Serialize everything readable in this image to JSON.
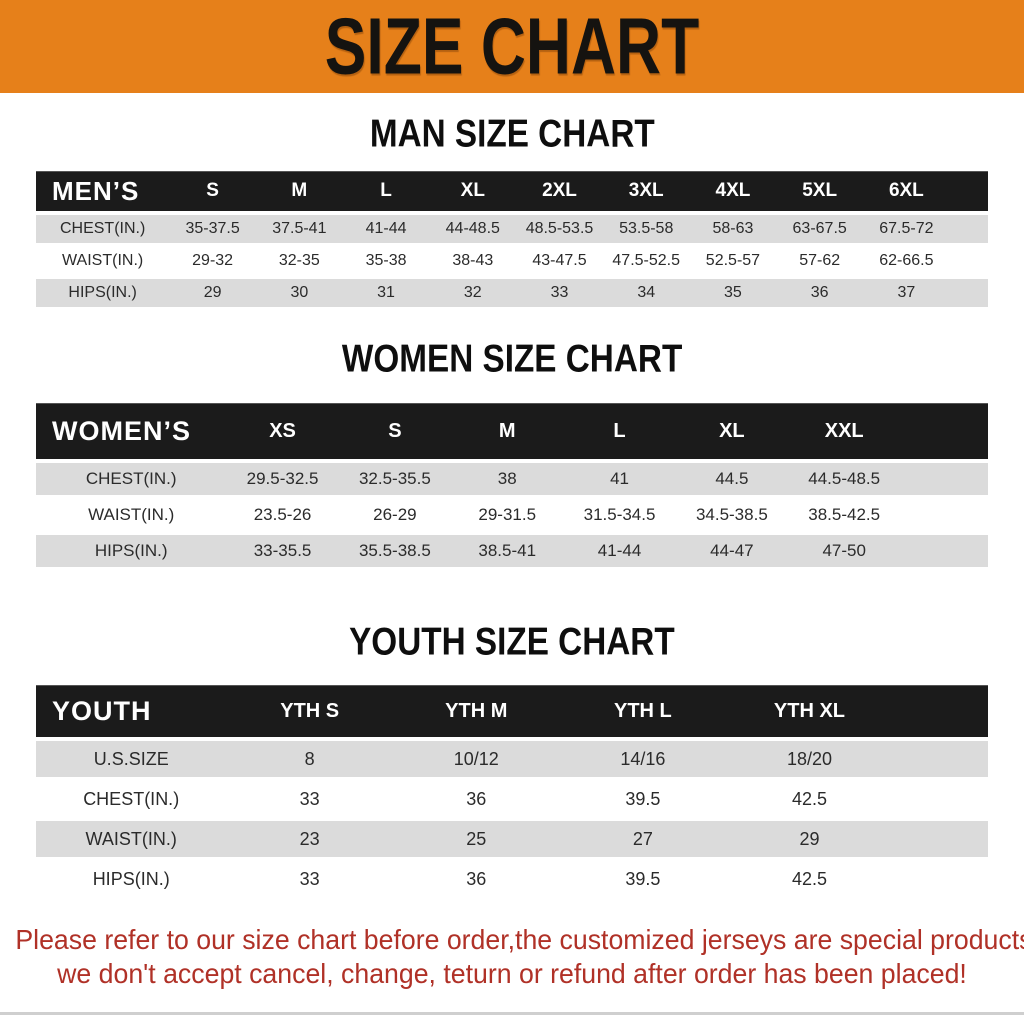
{
  "banner": {
    "title": "SIZE CHART"
  },
  "colors": {
    "banner_bg": "#E6801A",
    "header_bar": "#1B1B1B",
    "row_alt": "#DBDBDB",
    "footer_red": "#B03127"
  },
  "sections": [
    {
      "heading": "MAN SIZE CHART",
      "header_label": "MEN’S",
      "columns": [
        "S",
        "M",
        "L",
        "XL",
        "2XL",
        "3XL",
        "4XL",
        "5XL",
        "6XL"
      ],
      "rows": [
        {
          "label": "CHEST(IN.)",
          "values": [
            "35-37.5",
            "37.5-41",
            "41-44",
            "44-48.5",
            "48.5-53.5",
            "53.5-58",
            "58-63",
            "63-67.5",
            "67.5-72"
          ]
        },
        {
          "label": "WAIST(IN.)",
          "values": [
            "29-32",
            "32-35",
            "35-38",
            "38-43",
            "43-47.5",
            "47.5-52.5",
            "52.5-57",
            "57-62",
            "62-66.5"
          ]
        },
        {
          "label": "HIPS(IN.)",
          "values": [
            "29",
            "30",
            "31",
            "32",
            "33",
            "34",
            "35",
            "36",
            "37"
          ]
        }
      ]
    },
    {
      "heading": "WOMEN SIZE CHART",
      "header_label": "WOMEN’S",
      "columns": [
        "XS",
        "S",
        "M",
        "L",
        "XL",
        "XXL"
      ],
      "rows": [
        {
          "label": "CHEST(IN.)",
          "values": [
            "29.5-32.5",
            "32.5-35.5",
            "38",
            "41",
            "44.5",
            "44.5-48.5"
          ]
        },
        {
          "label": "WAIST(IN.)",
          "values": [
            "23.5-26",
            "26-29",
            "29-31.5",
            "31.5-34.5",
            "34.5-38.5",
            "38.5-42.5"
          ]
        },
        {
          "label": "HIPS(IN.)",
          "values": [
            "33-35.5",
            "35.5-38.5",
            "38.5-41",
            "41-44",
            "44-47",
            "47-50"
          ]
        }
      ]
    },
    {
      "heading": "YOUTH SIZE CHART",
      "header_label": "YOUTH",
      "columns": [
        "YTH S",
        "YTH M",
        "YTH L",
        "YTH XL"
      ],
      "rows": [
        {
          "label": "U.S.SIZE",
          "values": [
            "8",
            "10/12",
            "14/16",
            "18/20"
          ]
        },
        {
          "label": "CHEST(IN.)",
          "values": [
            "33",
            "36",
            "39.5",
            "42.5"
          ]
        },
        {
          "label": "WAIST(IN.)",
          "values": [
            "23",
            "25",
            "27",
            "29"
          ]
        },
        {
          "label": "HIPS(IN.)",
          "values": [
            "33",
            "36",
            "39.5",
            "42.5"
          ]
        }
      ]
    }
  ],
  "footer": {
    "lines": [
      "Please refer to our size chart before order,the customized jerseys are special products,",
      "we don't accept cancel, change, teturn or refund after order has been placed!"
    ]
  }
}
